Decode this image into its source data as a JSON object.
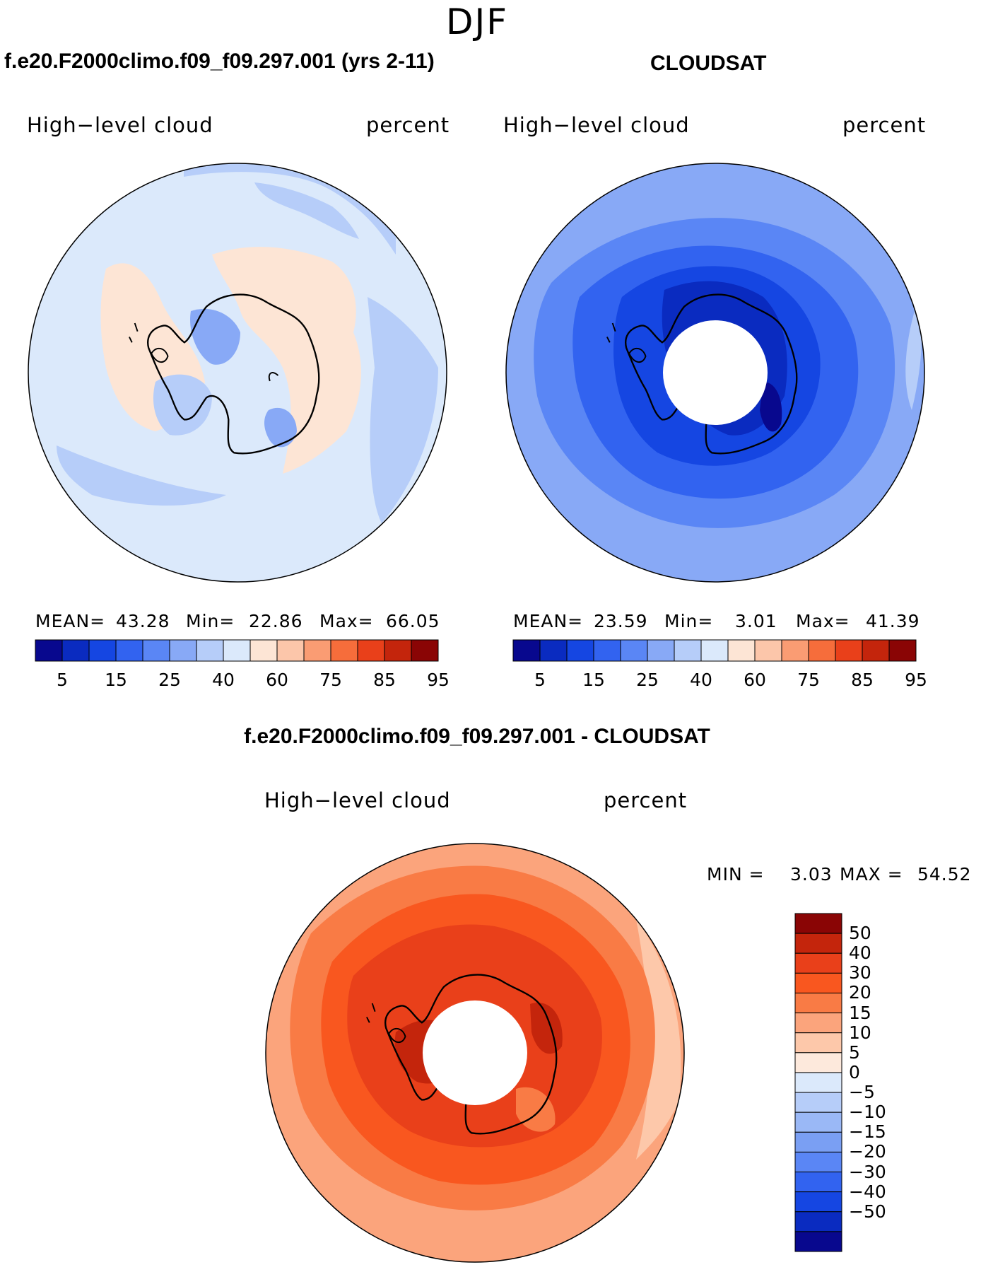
{
  "figure": {
    "season": "DJF"
  },
  "panels": {
    "model": {
      "title": "f.e20.F2000climo.f09_f09.297.001 (yrs 2-11)",
      "left_label": "High−level cloud",
      "right_label": "percent",
      "stats": {
        "mean_label": "MEAN=",
        "mean": "43.28",
        "min_label": "Min=",
        "min": "22.86",
        "max_label": "Max=",
        "max": "66.05"
      }
    },
    "obs": {
      "title": "CLOUDSAT",
      "left_label": "High−level cloud",
      "right_label": "percent",
      "stats": {
        "mean_label": "MEAN=",
        "mean": "23.59",
        "min_label": "Min=",
        "min": "3.01",
        "max_label": "Max=",
        "max": "41.39"
      }
    },
    "diff": {
      "title": "f.e20.F2000climo.f09_f09.297.001 - CLOUDSAT",
      "left_label": "High−level cloud",
      "right_label": "percent",
      "stats": {
        "min_label": "MIN =",
        "min": "3.03",
        "max_label": "MAX =",
        "max": "54.52"
      }
    }
  },
  "colorbars": {
    "abs": {
      "colors": [
        "#08088e",
        "#0a2bc0",
        "#1546e2",
        "#3263f0",
        "#5a86f5",
        "#88a9f6",
        "#b6cdf9",
        "#dbe9fb",
        "#fde5d5",
        "#fcc6aa",
        "#fa9c73",
        "#f66d3b",
        "#e9401a",
        "#c4250c",
        "#8a0505"
      ],
      "tick_labels": [
        "5",
        "15",
        "25",
        "40",
        "60",
        "75",
        "85",
        "95"
      ]
    },
    "diff": {
      "colors": [
        "#8a0505",
        "#c4250c",
        "#e9401a",
        "#f9571f",
        "#f97b45",
        "#fba47c",
        "#fdc8aa",
        "#fde9dc",
        "#dbe9fb",
        "#b6cdf9",
        "#9ab8f6",
        "#7a9ff3",
        "#5a86f5",
        "#3263f0",
        "#1546e2",
        "#0a2bc0",
        "#08088e"
      ],
      "tick_labels": [
        "50",
        "40",
        "30",
        "20",
        "15",
        "10",
        "5",
        "0",
        "−5",
        "−10",
        "−15",
        "−20",
        "−30",
        "−40",
        "−50"
      ]
    }
  },
  "map_colors": {
    "model_base": "#dbe9fb",
    "model_low": "#b6cdf9",
    "model_lower": "#88a9f6",
    "model_warm": "#fde5d5",
    "model_warmer": "#fcc6aa",
    "obs_base": "#88a9f6",
    "obs_mid": "#5a86f5",
    "obs_low": "#3263f0",
    "obs_lower": "#1546e2",
    "obs_lowest": "#0a2bc0",
    "obs_edge": "#b6cdf9",
    "diff_base": "#f9571f",
    "diff_outer": "#fba47c",
    "diff_outer2": "#f97b45",
    "diff_pale": "#fdc8aa",
    "diff_inner": "#e9401a",
    "diff_core": "#c4250c"
  }
}
